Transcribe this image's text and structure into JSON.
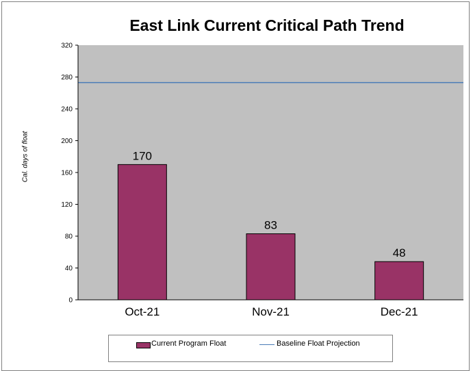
{
  "chart_data": {
    "type": "bar",
    "title": "East Link Current Critical Path Trend",
    "xlabel": "",
    "ylabel": "Cal. days of float",
    "categories": [
      "Oct-21",
      "Nov-21",
      "Dec-21"
    ],
    "series": [
      {
        "name": "Current Program Float",
        "type": "bar",
        "values": [
          170,
          83,
          48
        ],
        "data_labels": [
          "170",
          "83",
          "48"
        ],
        "color": "#993366"
      },
      {
        "name": "Baseline Float Projection",
        "type": "line",
        "values": [
          273,
          273,
          273
        ],
        "color": "#4a7bb7"
      }
    ],
    "ylim": [
      0,
      320
    ],
    "yticks": [
      0,
      40,
      80,
      120,
      160,
      200,
      240,
      280,
      320
    ],
    "grid": false,
    "plot_background": "#c0c0c0",
    "legend_position": "bottom"
  }
}
